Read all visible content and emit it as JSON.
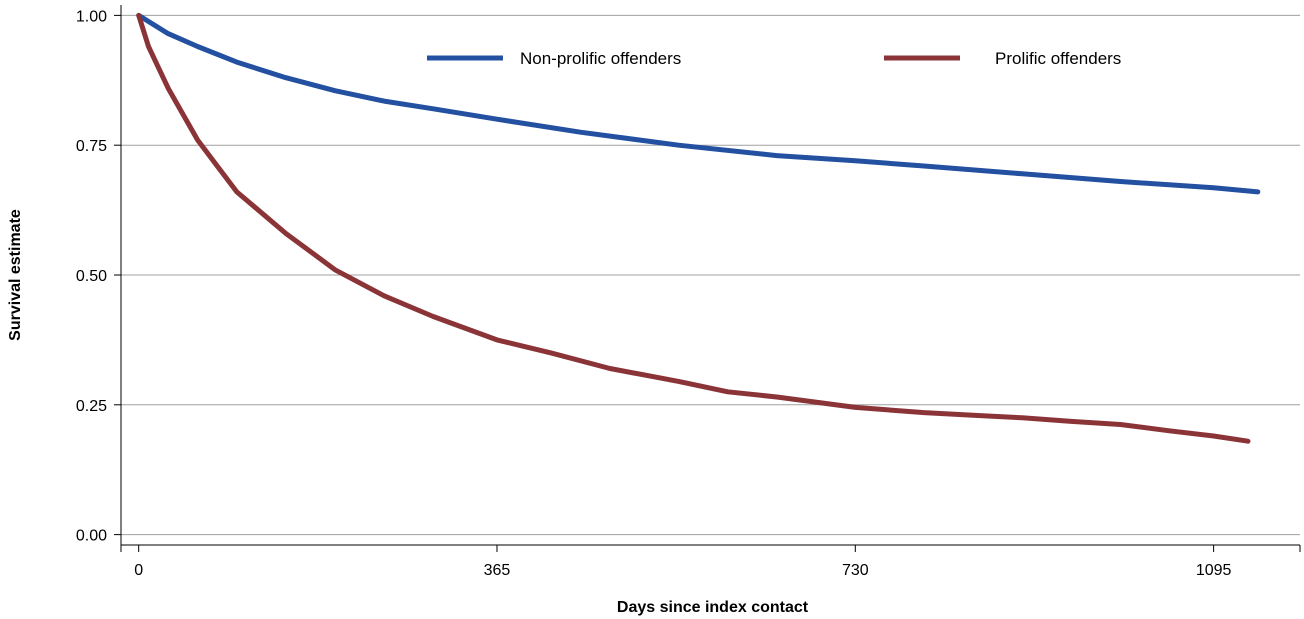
{
  "chart_data": {
    "type": "line",
    "title": "",
    "xlabel": "Days since index contact",
    "ylabel": "Survival estimate",
    "xlim": [
      -18,
      1183
    ],
    "ylim": [
      -0.02,
      1.02
    ],
    "x_ticks": [
      0,
      365,
      730,
      1095
    ],
    "x_tick_labels": [
      "0",
      "365",
      "730",
      "1095"
    ],
    "y_ticks": [
      0,
      0.25,
      0.5,
      0.75,
      1.0
    ],
    "y_tick_labels": [
      "0.00",
      "0.25",
      "0.50",
      "0.75",
      "1.00"
    ],
    "grid": "horizontal",
    "legend_position": "top",
    "series": [
      {
        "name": "Non-prolific offenders",
        "color": "#2350a0",
        "x": [
          0,
          30,
          60,
          100,
          150,
          200,
          250,
          300,
          365,
          450,
          550,
          650,
          730,
          800,
          900,
          1000,
          1095,
          1140
        ],
        "y": [
          1.0,
          0.965,
          0.94,
          0.91,
          0.88,
          0.855,
          0.835,
          0.82,
          0.8,
          0.775,
          0.75,
          0.73,
          0.72,
          0.71,
          0.695,
          0.68,
          0.668,
          0.66
        ]
      },
      {
        "name": "Prolific offenders",
        "color": "#8b3438",
        "x": [
          0,
          10,
          20,
          30,
          45,
          60,
          80,
          100,
          125,
          150,
          175,
          200,
          250,
          300,
          365,
          420,
          480,
          550,
          600,
          650,
          730,
          800,
          850,
          900,
          950,
          1000,
          1050,
          1095,
          1130
        ],
        "y": [
          1.0,
          0.94,
          0.9,
          0.86,
          0.81,
          0.76,
          0.71,
          0.66,
          0.62,
          0.58,
          0.545,
          0.51,
          0.46,
          0.42,
          0.375,
          0.35,
          0.32,
          0.295,
          0.275,
          0.265,
          0.245,
          0.235,
          0.23,
          0.225,
          0.218,
          0.212,
          0.2,
          0.19,
          0.18
        ]
      }
    ]
  }
}
